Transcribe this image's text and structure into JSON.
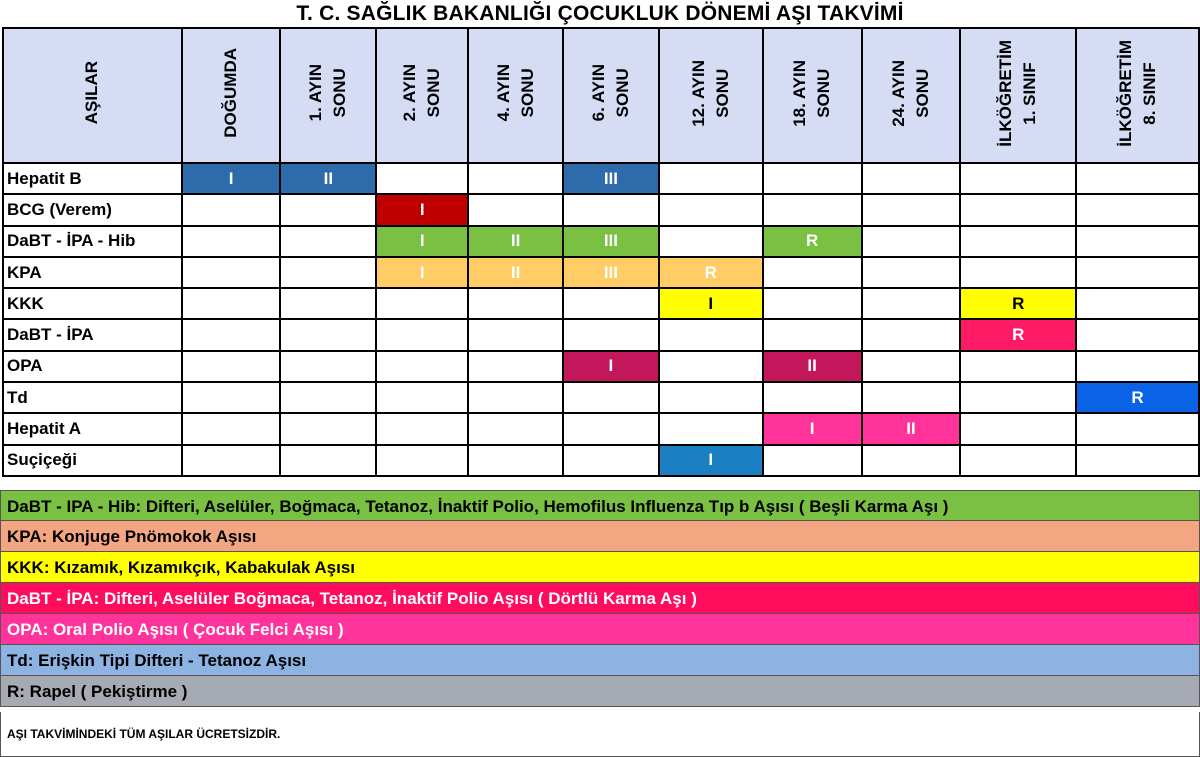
{
  "title": "T. C. SAĞLIK BAKANLIĞI ÇOCUKLUK DÖNEMİ AŞI TAKVİMİ",
  "header": {
    "vaccines_label": "AŞILAR",
    "columns": [
      "DOĞUMDA",
      "1. AYIN\nSONU",
      "2. AYIN\nSONU",
      "4. AYIN\nSONU",
      "6. AYIN\nSONU",
      "12. AYIN\nSONU",
      "18. AYIN\nSONU",
      "24. AYIN\nSONU",
      "İLKÖĞRETİM\n1. SINIF",
      "İLKÖĞRETİM\n8. SINIF"
    ]
  },
  "rows": [
    {
      "name": "Hepatit B",
      "doses": [
        {
          "col": 0,
          "label": "I",
          "color": "#2e6bab"
        },
        {
          "col": 1,
          "label": "II",
          "color": "#2e6bab"
        },
        {
          "col": 4,
          "label": "III",
          "color": "#2e6bab"
        }
      ]
    },
    {
      "name": "BCG (Verem)",
      "doses": [
        {
          "col": 2,
          "label": "I",
          "color": "#c00000"
        }
      ]
    },
    {
      "name": "DaBT - İPA - Hib",
      "doses": [
        {
          "col": 2,
          "label": "I",
          "color": "#7ac143"
        },
        {
          "col": 3,
          "label": "II",
          "color": "#7ac143"
        },
        {
          "col": 4,
          "label": "III",
          "color": "#7ac143"
        },
        {
          "col": 6,
          "label": "R",
          "color": "#7ac143"
        }
      ]
    },
    {
      "name": "KPA",
      "doses": [
        {
          "col": 2,
          "label": "I",
          "color": "#ffcc66"
        },
        {
          "col": 3,
          "label": "II",
          "color": "#ffcc66"
        },
        {
          "col": 4,
          "label": "III",
          "color": "#ffcc66"
        },
        {
          "col": 5,
          "label": "R",
          "color": "#ffcc66"
        }
      ]
    },
    {
      "name": "KKK",
      "doses": [
        {
          "col": 5,
          "label": "I",
          "color": "#ffff00",
          "text_color": "#000000"
        },
        {
          "col": 8,
          "label": "R",
          "color": "#ffff00",
          "text_color": "#000000"
        }
      ]
    },
    {
      "name": "DaBT - İPA",
      "doses": [
        {
          "col": 8,
          "label": "R",
          "color": "#ff1a66"
        }
      ]
    },
    {
      "name": "OPA",
      "doses": [
        {
          "col": 4,
          "label": "I",
          "color": "#c2185b"
        },
        {
          "col": 6,
          "label": "II",
          "color": "#c2185b"
        }
      ]
    },
    {
      "name": "Td",
      "doses": [
        {
          "col": 9,
          "label": "R",
          "color": "#0a63e6"
        }
      ]
    },
    {
      "name": "Hepatit A",
      "doses": [
        {
          "col": 6,
          "label": "I",
          "color": "#ff3399"
        },
        {
          "col": 7,
          "label": "II",
          "color": "#ff3399"
        }
      ]
    },
    {
      "name": "Suçiçeği",
      "doses": [
        {
          "col": 5,
          "label": "I",
          "color": "#1b7fc4"
        }
      ]
    }
  ],
  "legend": [
    {
      "text": "DaBT - IPA - Hib: Difteri, Aselüler, Boğmaca, Tetanoz, İnaktif Polio, Hemofilus Influenza Tıp b Aşısı ( Beşli Karma Aşı )",
      "color": "#7ac143",
      "text_color": "#000000"
    },
    {
      "text": "KPA: Konjuge Pnömokok Aşısı",
      "color": "#f4a582",
      "text_color": "#000000"
    },
    {
      "text": "KKK: Kızamık, Kızamıkçık, Kabakulak Aşısı",
      "color": "#ffff00",
      "text_color": "#000000"
    },
    {
      "text": "DaBT - İPA: Difteri, Aselüler Boğmaca, Tetanoz, İnaktif Polio Aşısı ( Dörtlü Karma Aşı )",
      "color": "#ff0d5c",
      "text_color": "#ffffff"
    },
    {
      "text": "OPA: Oral Polio Aşısı ( Çocuk Felci Aşısı )",
      "color": "#ff3399",
      "text_color": "#ffffff"
    },
    {
      "text": "Td: Erişkin Tipi Difteri - Tetanoz Aşısı",
      "color": "#8db3e2",
      "text_color": "#000000"
    },
    {
      "text": "R: Rapel ( Pekiştirme )",
      "color": "#a6aab3",
      "text_color": "#000000"
    }
  ],
  "footer": "AŞI TAKVİMİNDEKİ TÜM AŞILAR ÜCRETSİZDİR."
}
